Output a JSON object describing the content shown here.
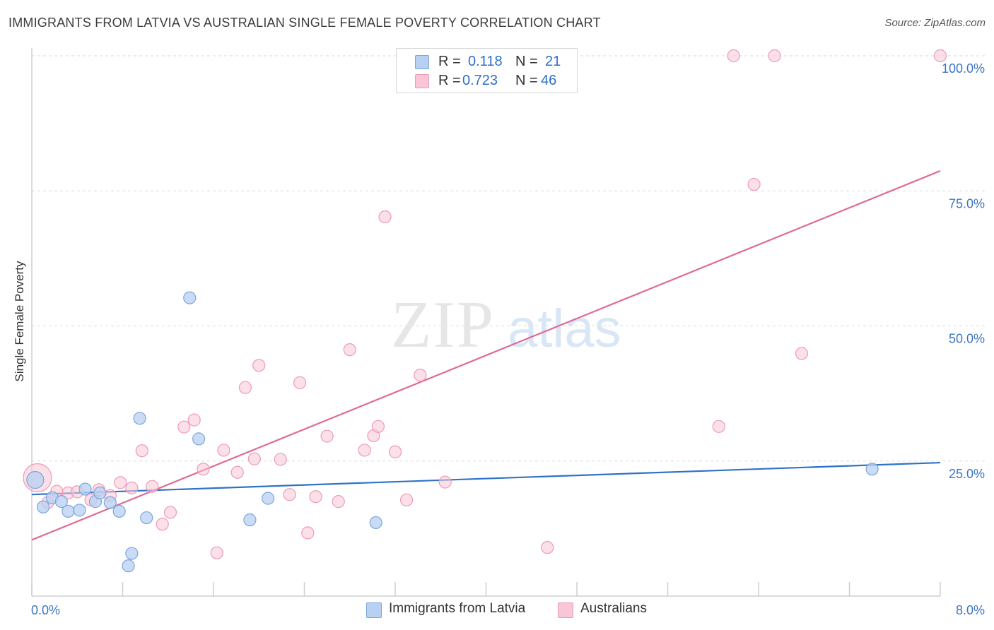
{
  "header": {
    "title": "IMMIGRANTS FROM LATVIA VS AUSTRALIAN SINGLE FEMALE POVERTY CORRELATION CHART",
    "source": "Source: ZipAtlas.com"
  },
  "watermark": {
    "zip": "ZIP",
    "atlas": "atlas"
  },
  "legend_top": {
    "rows": [
      {
        "r_label": "R =",
        "r_value": "0.118",
        "n_label": "N =",
        "n_value": "21"
      },
      {
        "r_label": "R =",
        "r_value": "0.723",
        "n_label": "N =",
        "n_value": "46"
      }
    ]
  },
  "legend_bottom": {
    "items": [
      {
        "label": "Immigrants from Latvia"
      },
      {
        "label": "Australians"
      }
    ]
  },
  "colors": {
    "blue_fill": "#b8d0f2",
    "blue_stroke": "#7aa6de",
    "blue_line": "#2f72c9",
    "pink_fill": "#f8c6d6",
    "pink_stroke": "#ee9ab6",
    "pink_line": "#e06a95",
    "tick_text": "#3b75c4",
    "grid": "#d9d9d9",
    "axis": "#cfcfcf"
  },
  "chart_data": {
    "type": "scatter",
    "xlabel": "",
    "ylabel": "Single Female Poverty",
    "xlim": [
      0,
      8
    ],
    "ylim": [
      0,
      100
    ],
    "x_tick_labels": [
      "0.0%",
      "8.0%"
    ],
    "y_tick_labels": [
      {
        "value": 25,
        "label": "25.0%"
      },
      {
        "value": 50,
        "label": "50.0%"
      },
      {
        "value": 75,
        "label": "75.0%"
      },
      {
        "value": 100,
        "label": "100.0%"
      }
    ],
    "series": [
      {
        "name": "Immigrants from Latvia",
        "color": "#7aa6de",
        "points": [
          {
            "x": 0.03,
            "y": 21.5
          },
          {
            "x": 0.1,
            "y": 16.5
          },
          {
            "x": 0.18,
            "y": 18.2
          },
          {
            "x": 0.26,
            "y": 17.5
          },
          {
            "x": 0.32,
            "y": 15.7
          },
          {
            "x": 0.42,
            "y": 15.9
          },
          {
            "x": 0.47,
            "y": 19.8
          },
          {
            "x": 0.56,
            "y": 17.5
          },
          {
            "x": 0.6,
            "y": 19.1
          },
          {
            "x": 0.69,
            "y": 17.3
          },
          {
            "x": 0.77,
            "y": 15.7
          },
          {
            "x": 0.85,
            "y": 5.6
          },
          {
            "x": 0.88,
            "y": 7.9
          },
          {
            "x": 0.95,
            "y": 32.9
          },
          {
            "x": 1.01,
            "y": 14.5
          },
          {
            "x": 1.39,
            "y": 55.2
          },
          {
            "x": 1.47,
            "y": 29.1
          },
          {
            "x": 1.92,
            "y": 14.1
          },
          {
            "x": 2.08,
            "y": 18.1
          },
          {
            "x": 3.03,
            "y": 13.6
          },
          {
            "x": 7.4,
            "y": 23.5
          }
        ]
      },
      {
        "name": "Australians",
        "color": "#ee9ab6",
        "points": [
          {
            "x": 0.05,
            "y": 21.9
          },
          {
            "x": 0.14,
            "y": 17.3
          },
          {
            "x": 0.22,
            "y": 19.4
          },
          {
            "x": 0.32,
            "y": 19.1
          },
          {
            "x": 0.4,
            "y": 19.3
          },
          {
            "x": 0.52,
            "y": 17.8
          },
          {
            "x": 0.59,
            "y": 19.7
          },
          {
            "x": 0.69,
            "y": 18.6
          },
          {
            "x": 0.78,
            "y": 21.0
          },
          {
            "x": 0.88,
            "y": 20.0
          },
          {
            "x": 0.97,
            "y": 26.9
          },
          {
            "x": 1.06,
            "y": 20.3
          },
          {
            "x": 1.15,
            "y": 13.3
          },
          {
            "x": 1.22,
            "y": 15.5
          },
          {
            "x": 1.34,
            "y": 31.3
          },
          {
            "x": 1.43,
            "y": 32.6
          },
          {
            "x": 1.51,
            "y": 23.5
          },
          {
            "x": 1.63,
            "y": 8.0
          },
          {
            "x": 1.69,
            "y": 27.0
          },
          {
            "x": 1.81,
            "y": 22.9
          },
          {
            "x": 1.88,
            "y": 38.6
          },
          {
            "x": 1.96,
            "y": 25.4
          },
          {
            "x": 2.0,
            "y": 42.7
          },
          {
            "x": 2.19,
            "y": 25.3
          },
          {
            "x": 2.27,
            "y": 18.8
          },
          {
            "x": 2.36,
            "y": 39.5
          },
          {
            "x": 2.43,
            "y": 11.7
          },
          {
            "x": 2.5,
            "y": 18.4
          },
          {
            "x": 2.6,
            "y": 29.6
          },
          {
            "x": 2.7,
            "y": 17.5
          },
          {
            "x": 2.8,
            "y": 45.6
          },
          {
            "x": 2.93,
            "y": 27.0
          },
          {
            "x": 3.01,
            "y": 29.7
          },
          {
            "x": 3.05,
            "y": 31.4
          },
          {
            "x": 3.11,
            "y": 70.2
          },
          {
            "x": 3.2,
            "y": 26.7
          },
          {
            "x": 3.3,
            "y": 17.8
          },
          {
            "x": 3.42,
            "y": 40.9
          },
          {
            "x": 3.64,
            "y": 21.1
          },
          {
            "x": 4.54,
            "y": 9.0
          },
          {
            "x": 6.05,
            "y": 31.4
          },
          {
            "x": 6.18,
            "y": 100.0
          },
          {
            "x": 6.36,
            "y": 76.2
          },
          {
            "x": 6.54,
            "y": 100.0
          },
          {
            "x": 6.78,
            "y": 44.9
          },
          {
            "x": 8.0,
            "y": 100.0
          }
        ]
      }
    ],
    "trendlines": [
      {
        "series": "Immigrants from Latvia",
        "x": [
          0,
          8
        ],
        "y": [
          18.8,
          24.7
        ]
      },
      {
        "series": "Australians",
        "x": [
          0,
          8
        ],
        "y": [
          10.4,
          78.7
        ]
      }
    ]
  }
}
